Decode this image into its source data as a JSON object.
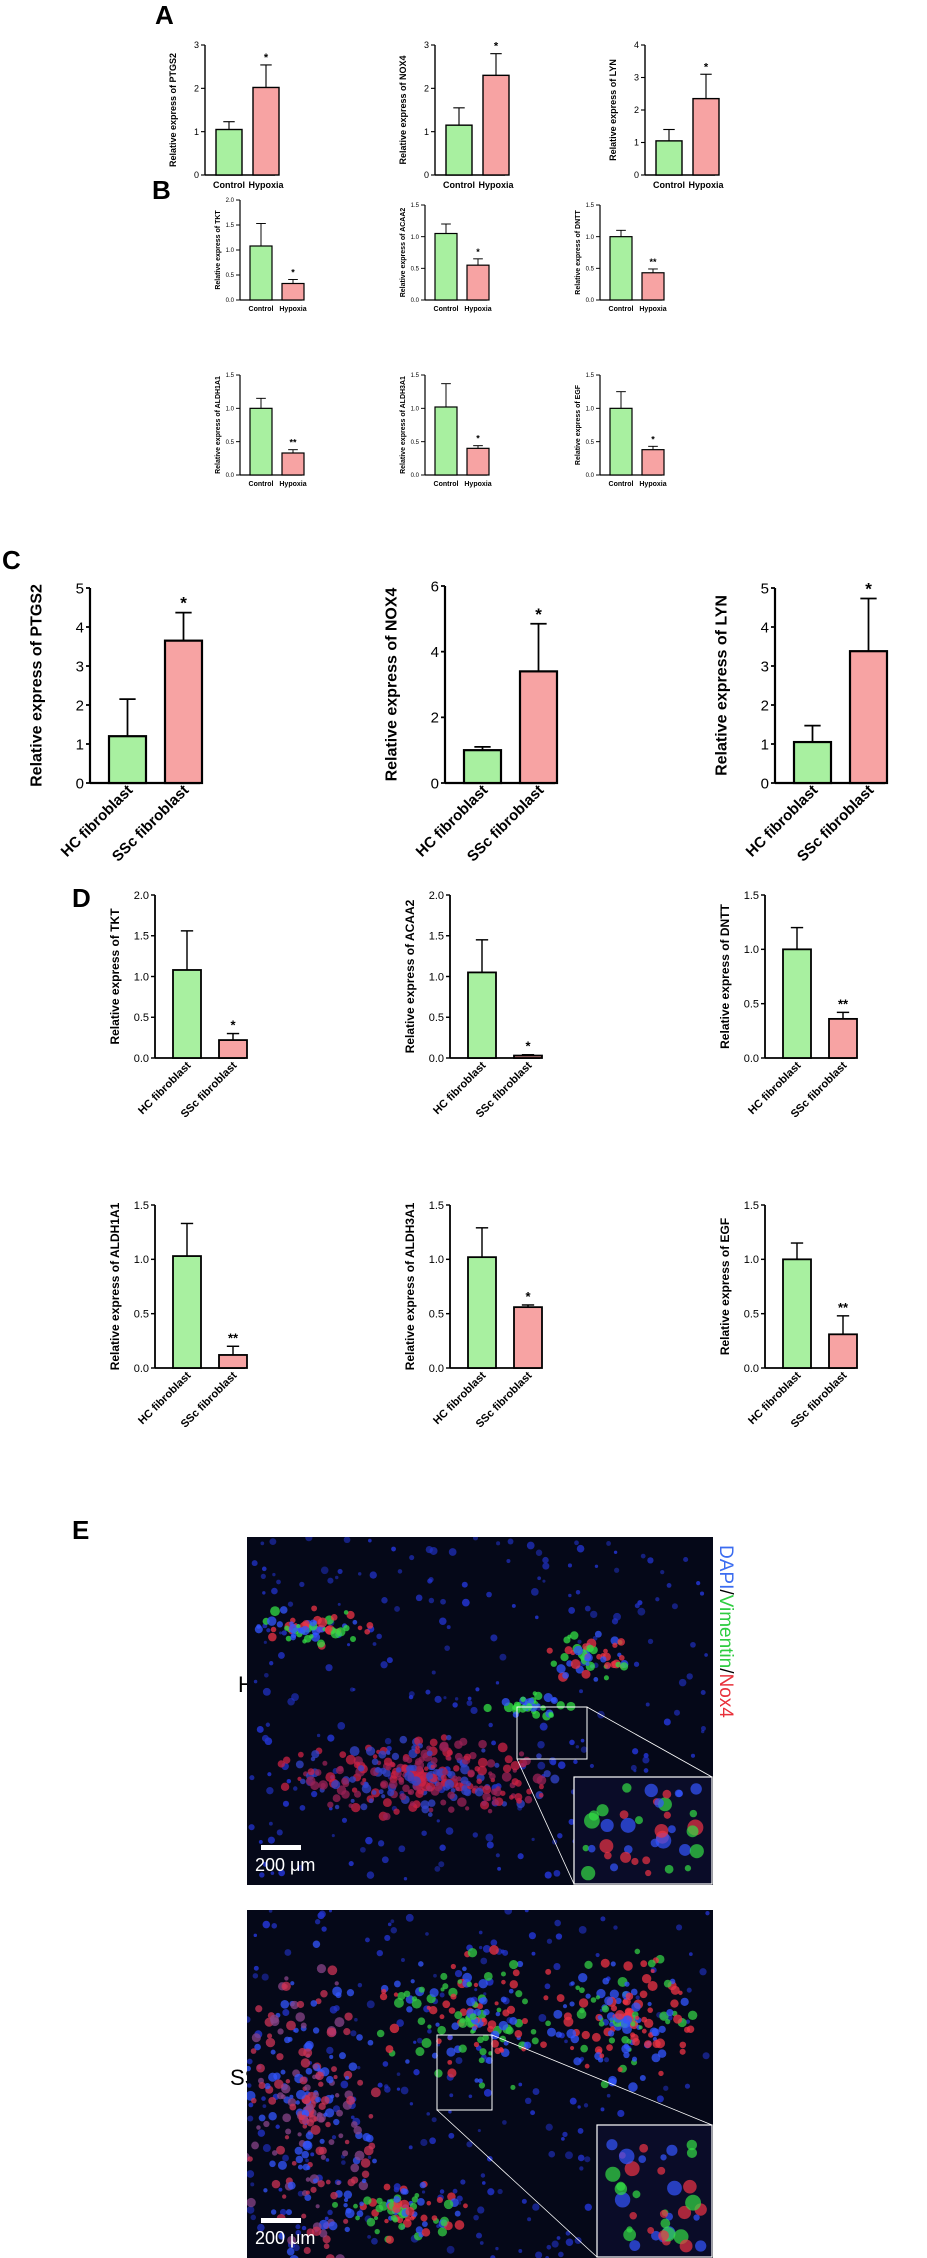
{
  "panels": {
    "A": "A",
    "B": "B",
    "C": "C",
    "D": "D",
    "E": "E"
  },
  "colors": {
    "control": "#a8f0a0",
    "treated": "#f7a3a3",
    "axis": "#000000"
  },
  "chart_data": [
    {
      "type": "bar",
      "panel": "A",
      "categories": [
        "Control",
        "Hypoxia"
      ],
      "values": [
        1.05,
        2.02
      ],
      "errors": [
        0.18,
        0.52
      ],
      "stars": [
        "",
        "*"
      ],
      "ylabel": "Relative express of PTGS2",
      "ylim": [
        0,
        3
      ],
      "yticks": [
        "0",
        "1",
        "2",
        "3"
      ]
    },
    {
      "type": "bar",
      "panel": "A",
      "categories": [
        "Control",
        "Hypoxia"
      ],
      "values": [
        1.15,
        2.3
      ],
      "errors": [
        0.4,
        0.5
      ],
      "stars": [
        "",
        "*"
      ],
      "ylabel": "Relative express of  NOX4",
      "ylim": [
        0,
        3
      ],
      "yticks": [
        "0",
        "1",
        "2",
        "3"
      ]
    },
    {
      "type": "bar",
      "panel": "A",
      "categories": [
        "Control",
        "Hypoxia"
      ],
      "values": [
        1.05,
        2.35
      ],
      "errors": [
        0.35,
        0.75
      ],
      "stars": [
        "",
        "*"
      ],
      "ylabel": "Relative express of  LYN",
      "ylim": [
        0,
        4
      ],
      "yticks": [
        "0",
        "1",
        "2",
        "3",
        "4"
      ]
    },
    {
      "type": "bar",
      "panel": "B",
      "categories": [
        "Control",
        "Hypoxia"
      ],
      "values": [
        1.08,
        0.33
      ],
      "errors": [
        0.45,
        0.08
      ],
      "stars": [
        "",
        "*"
      ],
      "ylabel": "Relative express of TKT",
      "ylim": [
        0,
        2.0
      ],
      "yticks": [
        "0.0",
        "0.5",
        "1.0",
        "1.5",
        "2.0"
      ]
    },
    {
      "type": "bar",
      "panel": "B",
      "categories": [
        "Control",
        "Hypoxia"
      ],
      "values": [
        1.05,
        0.55
      ],
      "errors": [
        0.15,
        0.1
      ],
      "stars": [
        "",
        "*"
      ],
      "ylabel": "Relative express of  ACAA2",
      "ylim": [
        0,
        1.5
      ],
      "yticks": [
        "0.0",
        "0.5",
        "1.0",
        "1.5"
      ]
    },
    {
      "type": "bar",
      "panel": "B",
      "categories": [
        "Control",
        "Hypoxia"
      ],
      "values": [
        1.0,
        0.43
      ],
      "errors": [
        0.1,
        0.06
      ],
      "stars": [
        "",
        "**"
      ],
      "ylabel": "Relative express of  DNTT",
      "ylim": [
        0,
        1.5
      ],
      "yticks": [
        "0.0",
        "0.5",
        "1.0",
        "1.5"
      ]
    },
    {
      "type": "bar",
      "panel": "B",
      "categories": [
        "Control",
        "Hypoxia"
      ],
      "values": [
        1.0,
        0.33
      ],
      "errors": [
        0.15,
        0.05
      ],
      "stars": [
        "",
        "**"
      ],
      "ylabel": "Relative express of  ALDH1A1",
      "ylim": [
        0,
        1.5
      ],
      "yticks": [
        "0.0",
        "0.5",
        "1.0",
        "1.5"
      ]
    },
    {
      "type": "bar",
      "panel": "B",
      "categories": [
        "Control",
        "Hypoxia"
      ],
      "values": [
        1.02,
        0.4
      ],
      "errors": [
        0.35,
        0.04
      ],
      "stars": [
        "",
        "*"
      ],
      "ylabel": "Relative express of  ALDH3A1",
      "ylim": [
        0,
        1.5
      ],
      "yticks": [
        "0.0",
        "0.5",
        "1.0",
        "1.5"
      ]
    },
    {
      "type": "bar",
      "panel": "B",
      "categories": [
        "Control",
        "Hypoxia"
      ],
      "values": [
        1.0,
        0.38
      ],
      "errors": [
        0.25,
        0.05
      ],
      "stars": [
        "",
        "*"
      ],
      "ylabel": "Relative express of  EGF",
      "ylim": [
        0,
        1.5
      ],
      "yticks": [
        "0.0",
        "0.5",
        "1.0",
        "1.5"
      ]
    },
    {
      "type": "bar",
      "panel": "C",
      "categories": [
        "HC fibroblast",
        "SSc fibroblast"
      ],
      "values": [
        1.2,
        3.65
      ],
      "errors": [
        0.95,
        0.72
      ],
      "stars": [
        "",
        "*"
      ],
      "ylabel": "Relative express of PTGS2",
      "ylim": [
        0,
        5
      ],
      "yticks": [
        "0",
        "1",
        "2",
        "3",
        "4",
        "5"
      ]
    },
    {
      "type": "bar",
      "panel": "C",
      "categories": [
        "HC fibroblast",
        "SSc fibroblast"
      ],
      "values": [
        1.0,
        3.4
      ],
      "errors": [
        0.1,
        1.45
      ],
      "stars": [
        "",
        "*"
      ],
      "ylabel": "Relative express of  NOX4",
      "ylim": [
        0,
        6
      ],
      "yticks": [
        "0",
        "2",
        "4",
        "6"
      ]
    },
    {
      "type": "bar",
      "panel": "C",
      "categories": [
        "HC fibroblast",
        "SSc fibroblast"
      ],
      "values": [
        1.05,
        3.38
      ],
      "errors": [
        0.42,
        1.35
      ],
      "stars": [
        "",
        "*"
      ],
      "ylabel": "Relative express of  LYN",
      "ylim": [
        0,
        5
      ],
      "yticks": [
        "0",
        "1",
        "2",
        "3",
        "4",
        "5"
      ]
    },
    {
      "type": "bar",
      "panel": "D",
      "categories": [
        "HC fibroblast",
        "SSc fibroblast"
      ],
      "values": [
        1.08,
        0.22
      ],
      "errors": [
        0.48,
        0.08
      ],
      "stars": [
        "",
        "*"
      ],
      "ylabel": "Relative express of TKT",
      "ylim": [
        0,
        2.0
      ],
      "yticks": [
        "0.0",
        "0.5",
        "1.0",
        "1.5",
        "2.0"
      ]
    },
    {
      "type": "bar",
      "panel": "D",
      "categories": [
        "HC fibroblast",
        "SSc fibroblast"
      ],
      "values": [
        1.05,
        0.03
      ],
      "errors": [
        0.4,
        0.01
      ],
      "stars": [
        "",
        "*"
      ],
      "ylabel": "Relative express of  ACAA2",
      "ylim": [
        0,
        2.0
      ],
      "yticks": [
        "0.0",
        "0.5",
        "1.0",
        "1.5",
        "2.0"
      ]
    },
    {
      "type": "bar",
      "panel": "D",
      "categories": [
        "HC fibroblast",
        "SSc fibroblast"
      ],
      "values": [
        1.0,
        0.36
      ],
      "errors": [
        0.2,
        0.06
      ],
      "stars": [
        "",
        "**"
      ],
      "ylabel": "Relative express of  DNTT",
      "ylim": [
        0,
        1.5
      ],
      "yticks": [
        "0.0",
        "0.5",
        "1.0",
        "1.5"
      ]
    },
    {
      "type": "bar",
      "panel": "D",
      "categories": [
        "HC fibroblast",
        "SSc fibroblast"
      ],
      "values": [
        1.03,
        0.12
      ],
      "errors": [
        0.3,
        0.08
      ],
      "stars": [
        "",
        "**"
      ],
      "ylabel": "Relative express of  ALDH1A1",
      "ylim": [
        0,
        1.5
      ],
      "yticks": [
        "0.0",
        "0.5",
        "1.0",
        "1.5"
      ]
    },
    {
      "type": "bar",
      "panel": "D",
      "categories": [
        "HC fibroblast",
        "SSc fibroblast"
      ],
      "values": [
        1.02,
        0.56
      ],
      "errors": [
        0.27,
        0.02
      ],
      "stars": [
        "",
        "*"
      ],
      "ylabel": "Relative express of  ALDH3A1",
      "ylim": [
        0,
        1.5
      ],
      "yticks": [
        "0.0",
        "0.5",
        "1.0",
        "1.5"
      ]
    },
    {
      "type": "bar",
      "panel": "D",
      "categories": [
        "HC fibroblast",
        "SSc fibroblast"
      ],
      "values": [
        1.0,
        0.31
      ],
      "errors": [
        0.15,
        0.17
      ],
      "stars": [
        "",
        "**"
      ],
      "ylabel": "Relative express of EGF",
      "ylim": [
        0,
        1.5
      ],
      "yticks": [
        "0.0",
        "0.5",
        "1.0",
        "1.5"
      ]
    }
  ],
  "panelE": {
    "rows": [
      "HC",
      "SSc"
    ],
    "legend": {
      "dapi": "DAPI",
      "sep1": "/",
      "vimentin": "Vimentin",
      "sep2": "/",
      "nox4": "Nox4"
    },
    "legend_colors": {
      "dapi": "#3b6cf0",
      "vimentin": "#2ecc40",
      "nox4": "#e8303a"
    },
    "scale_label": "200 μm"
  }
}
